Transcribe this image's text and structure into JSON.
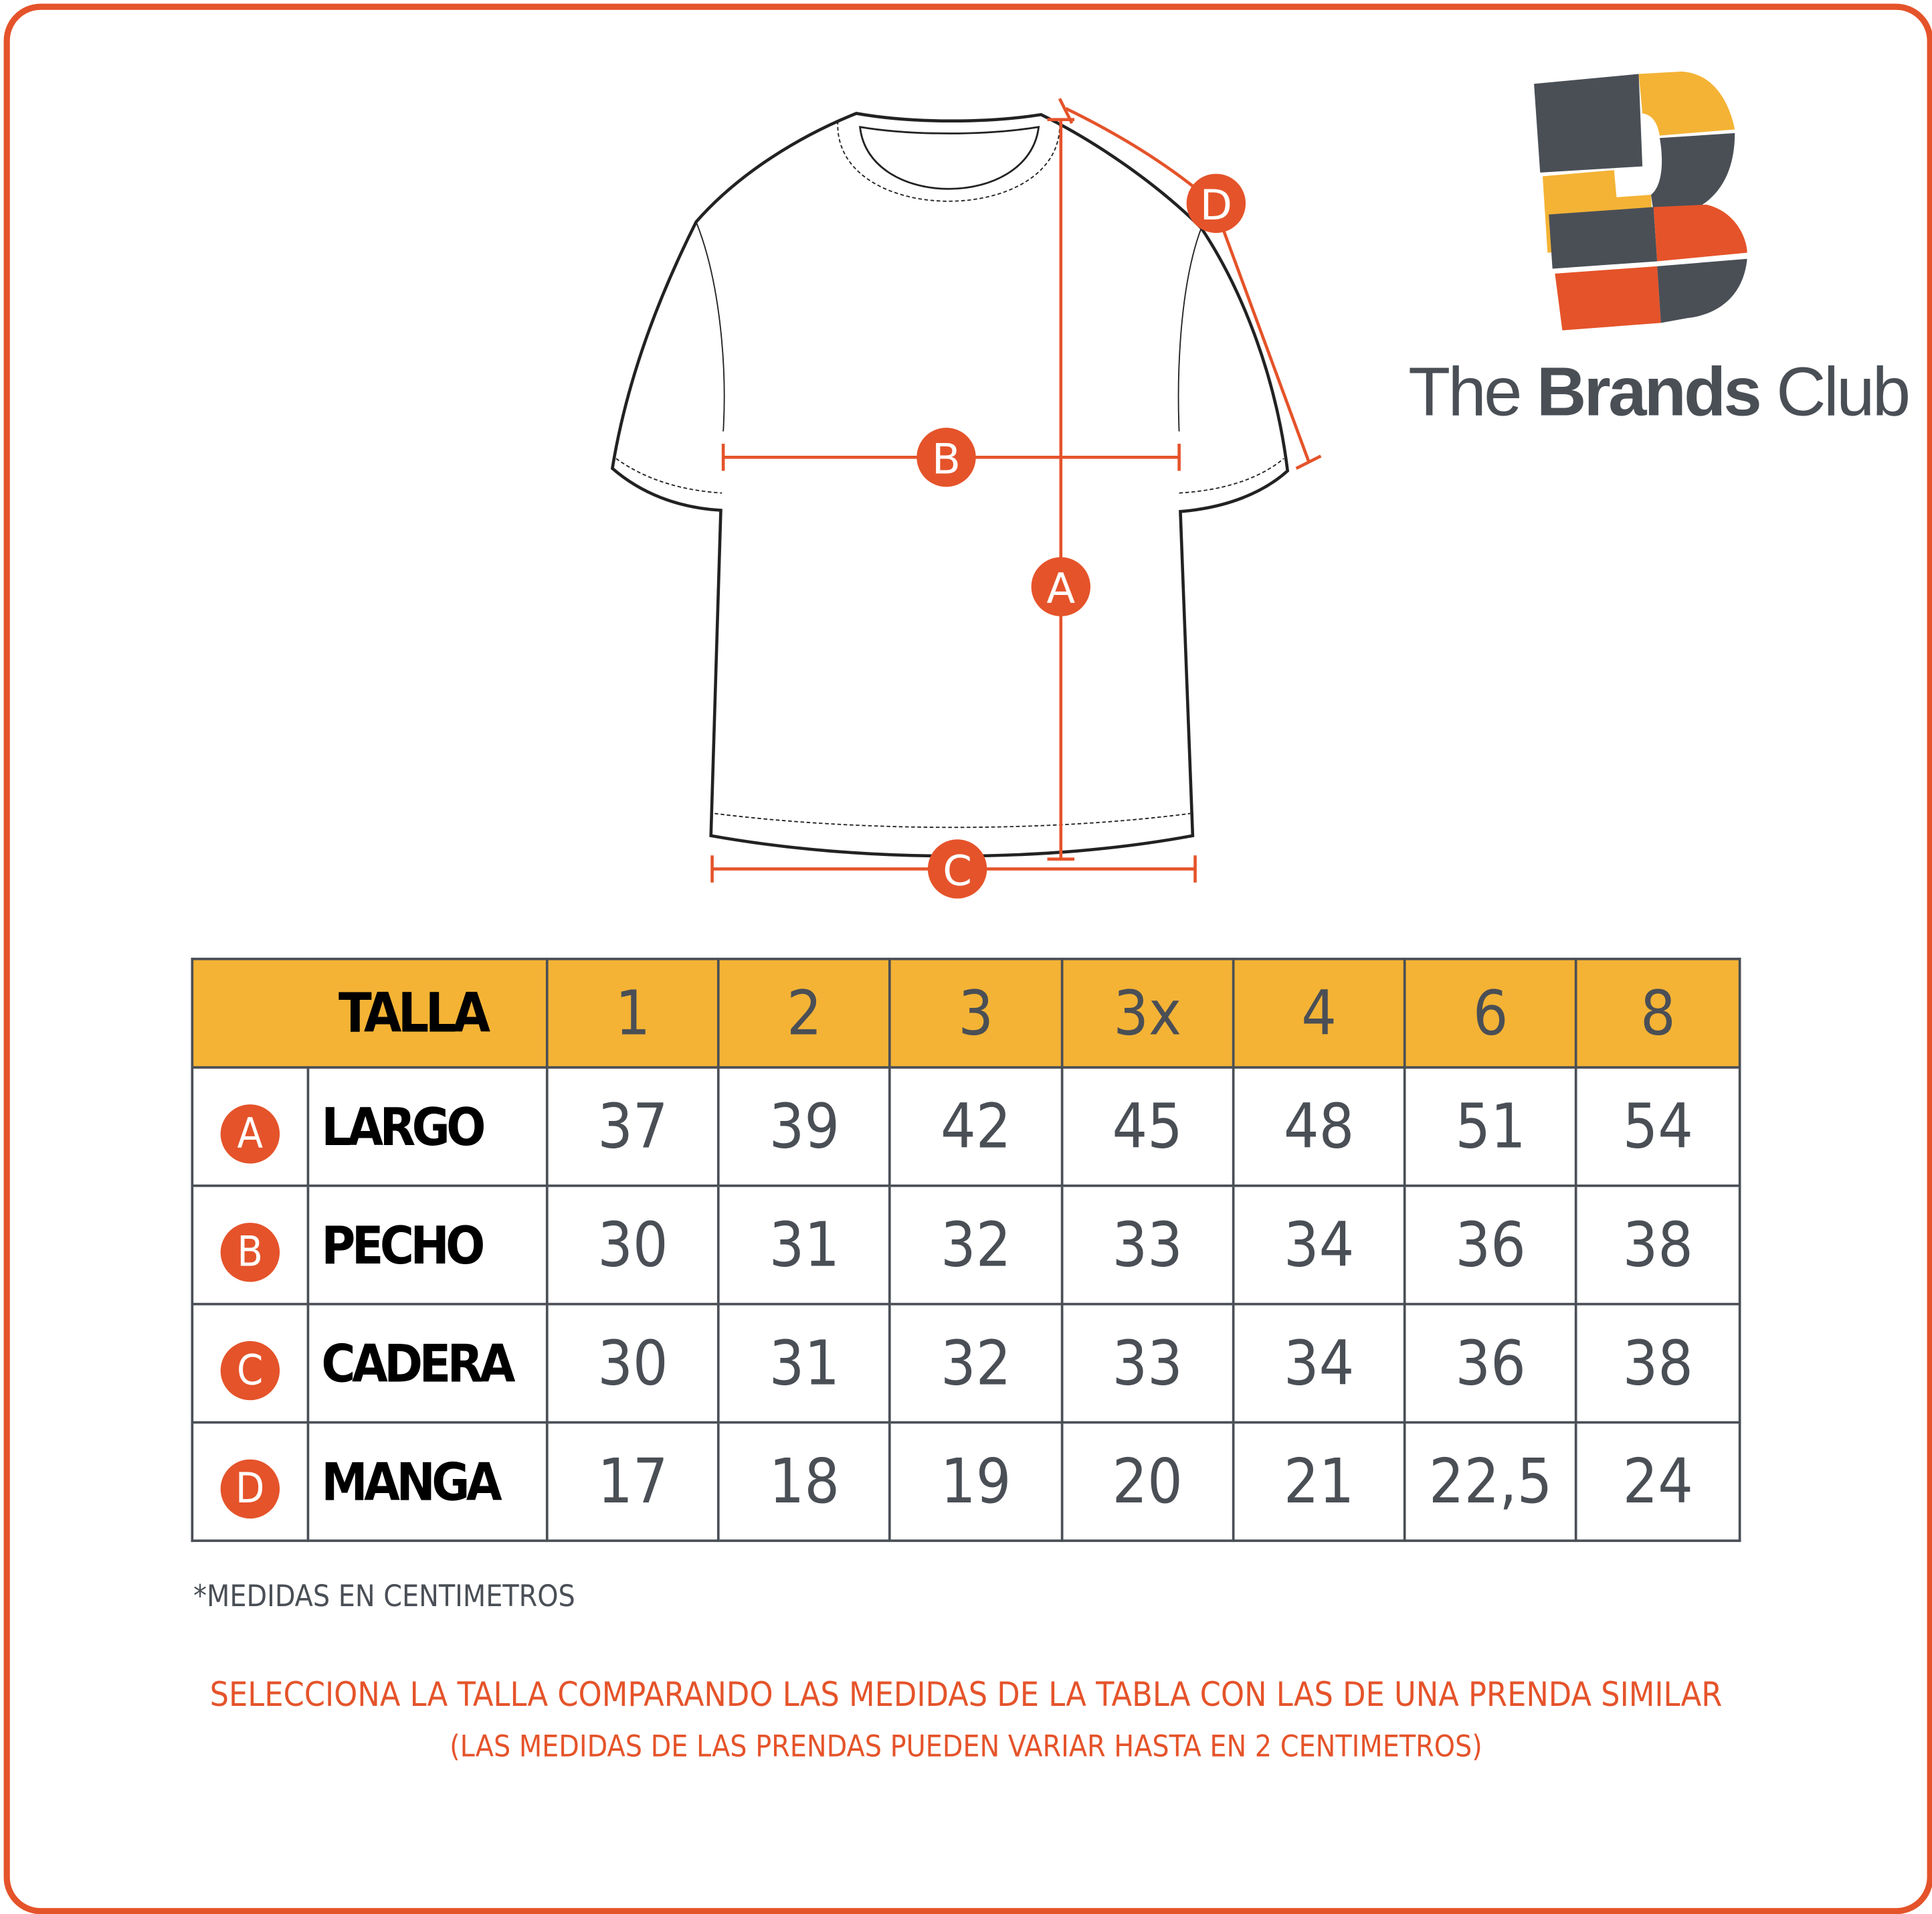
{
  "brand": {
    "name": "The Brands Club",
    "name_parts": [
      "The",
      "Brands",
      "Club"
    ],
    "colors": {
      "accent": "#e5532a",
      "yellow": "#f4b335",
      "dark": "#4a4f56"
    }
  },
  "diagram": {
    "labels": {
      "a": "A",
      "b": "B",
      "c": "C",
      "d": "D"
    }
  },
  "table": {
    "header_label": "TALLA",
    "sizes": [
      "1",
      "2",
      "3",
      "3x",
      "4",
      "6",
      "8"
    ],
    "rows": [
      {
        "badge": "A",
        "label": "LARGO",
        "values": [
          "37",
          "39",
          "42",
          "45",
          "48",
          "51",
          "54"
        ]
      },
      {
        "badge": "B",
        "label": "PECHO",
        "values": [
          "30",
          "31",
          "32",
          "33",
          "34",
          "36",
          "38"
        ]
      },
      {
        "badge": "C",
        "label": "CADERA",
        "values": [
          "30",
          "31",
          "32",
          "33",
          "34",
          "36",
          "38"
        ]
      },
      {
        "badge": "D",
        "label": "MANGA",
        "values": [
          "17",
          "18",
          "19",
          "20",
          "21",
          "22,5",
          "24"
        ]
      }
    ]
  },
  "footnote": "*MEDIDAS EN CENTIMETROS",
  "advice": {
    "line1": "SELECCIONA LA TALLA COMPARANDO LAS MEDIDAS DE LA TABLA CON LAS DE UNA PRENDA SIMILAR",
    "line2": "(LAS MEDIDAS DE LAS PRENDAS PUEDEN VARIAR HASTA EN 2 CENTIMETROS)"
  }
}
